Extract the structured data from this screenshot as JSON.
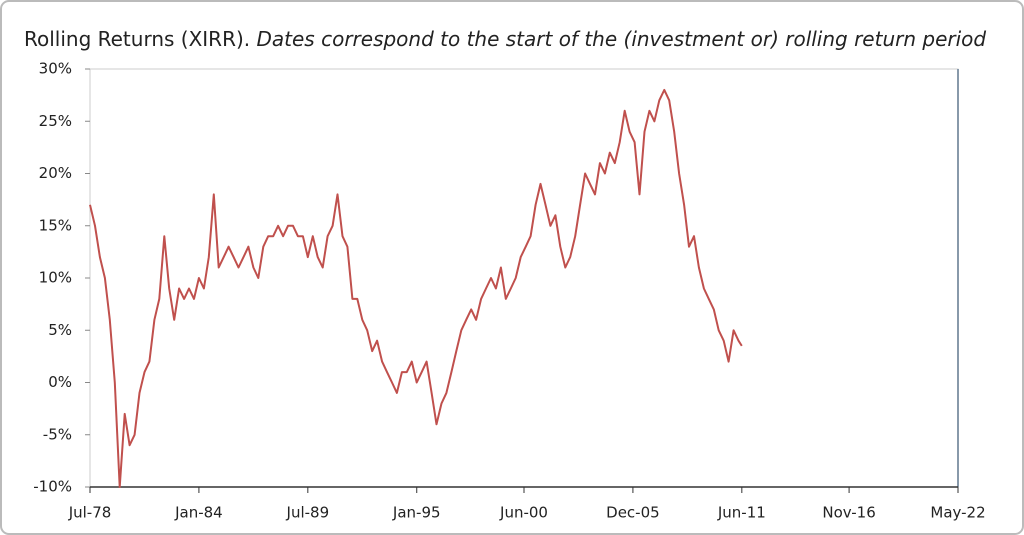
{
  "chart_data": {
    "type": "line",
    "title": "Rolling Returns (XIRR).",
    "subtitle": "Dates correspond to the start of the (investment or) rolling return period",
    "x": [
      "Jul-78",
      "Oct-78",
      "Jan-79",
      "Apr-79",
      "Jul-79",
      "Oct-79",
      "Jan-80",
      "Apr-80",
      "Jul-80",
      "Oct-80",
      "Jan-81",
      "Apr-81",
      "Jul-81",
      "Oct-81",
      "Jan-82",
      "Apr-82",
      "Jul-82",
      "Oct-82",
      "Jan-83",
      "Apr-83",
      "Jul-83",
      "Oct-83",
      "Jan-84",
      "Apr-84",
      "Jul-84",
      "Oct-84",
      "Jan-85",
      "Apr-85",
      "Jul-85",
      "Oct-85",
      "Jan-86",
      "Apr-86",
      "Jul-86",
      "Oct-86",
      "Jan-87",
      "Apr-87",
      "Jul-87",
      "Oct-87",
      "Jan-88",
      "Apr-88",
      "Jul-88",
      "Oct-88",
      "Jan-89",
      "Apr-89",
      "Jul-89",
      "Oct-89",
      "Jan-90",
      "Apr-90",
      "Jul-90",
      "Oct-90",
      "Jan-91",
      "Apr-91",
      "Jul-91",
      "Oct-91",
      "Jan-92",
      "Apr-92",
      "Jul-92",
      "Oct-92",
      "Jan-93",
      "Apr-93",
      "Jul-93",
      "Oct-93",
      "Jan-94",
      "Apr-94",
      "Jul-94",
      "Oct-94",
      "Jan-95",
      "Apr-95",
      "Jul-95",
      "Oct-95",
      "Jan-96",
      "Apr-96",
      "Jul-96",
      "Oct-96",
      "Jan-97",
      "Apr-97",
      "Jul-97",
      "Oct-97",
      "Jan-98",
      "Apr-98",
      "Jul-98",
      "Oct-98",
      "Jan-99",
      "Apr-99",
      "Jul-99",
      "Oct-99",
      "Jan-00",
      "Apr-00",
      "Jul-00",
      "Oct-00",
      "Jan-01",
      "Apr-01",
      "Jul-01",
      "Oct-01",
      "Jan-02",
      "Apr-02",
      "Jul-02",
      "Oct-02",
      "Jan-03",
      "Apr-03",
      "Jul-03",
      "Oct-03",
      "Jan-04",
      "Apr-04",
      "Jul-04",
      "Oct-04",
      "Jan-05",
      "Apr-05",
      "Jul-05",
      "Oct-05",
      "Jan-06",
      "Apr-06",
      "Jul-06",
      "Oct-06",
      "Jan-07",
      "Apr-07",
      "Jul-07",
      "Oct-07",
      "Jan-08",
      "Apr-08",
      "Jul-08",
      "Oct-08",
      "Jan-09",
      "Apr-09",
      "Jul-09",
      "Oct-09",
      "Jan-10",
      "Apr-10",
      "Jul-10",
      "Oct-10",
      "Jan-11",
      "Apr-11",
      "Jun-11"
    ],
    "series": [
      {
        "name": "Rolling Returns",
        "color": "#c0504d",
        "values": [
          17,
          15,
          12,
          10,
          6,
          0,
          -10,
          -3,
          -6,
          -5,
          -1,
          1,
          2,
          6,
          8,
          14,
          9,
          6,
          9,
          8,
          9,
          8,
          10,
          9,
          12,
          18,
          11,
          12,
          13,
          12,
          11,
          12,
          13,
          11,
          10,
          13,
          14,
          14,
          15,
          14,
          15,
          15,
          14,
          14,
          12,
          14,
          12,
          11,
          14,
          15,
          18,
          14,
          13,
          8,
          8,
          6,
          5,
          3,
          4,
          2,
          1,
          0,
          -1,
          1,
          1,
          2,
          0,
          1,
          2,
          -1,
          -4,
          -2,
          -1,
          1,
          3,
          5,
          6,
          7,
          6,
          8,
          9,
          10,
          9,
          11,
          8,
          9,
          10,
          12,
          13,
          14,
          17,
          19,
          17,
          15,
          16,
          13,
          11,
          12,
          14,
          17,
          20,
          19,
          18,
          21,
          20,
          22,
          21,
          23,
          26,
          24,
          23,
          18,
          24,
          26,
          25,
          27,
          28,
          27,
          24,
          20,
          17,
          13,
          14,
          11,
          9,
          8,
          7,
          5,
          4,
          2,
          5,
          4,
          3.5
        ]
      }
    ],
    "xlim": [
      "Jul-78",
      "May-22"
    ],
    "xticks": [
      "Jul-78",
      "Jan-84",
      "Jul-89",
      "Jan-95",
      "Jun-00",
      "Dec-05",
      "Jun-11",
      "Nov-16",
      "May-22"
    ],
    "ylim": [
      -10,
      30
    ],
    "yticks": [
      {
        "value": -10,
        "label": "-10%"
      },
      {
        "value": -5,
        "label": "-5%"
      },
      {
        "value": 0,
        "label": "0%"
      },
      {
        "value": 5,
        "label": "5%"
      },
      {
        "value": 10,
        "label": "10%"
      },
      {
        "value": 15,
        "label": "15%"
      },
      {
        "value": 20,
        "label": "20%"
      },
      {
        "value": 25,
        "label": "25%"
      },
      {
        "value": 30,
        "label": "30%"
      }
    ],
    "grid": false
  }
}
